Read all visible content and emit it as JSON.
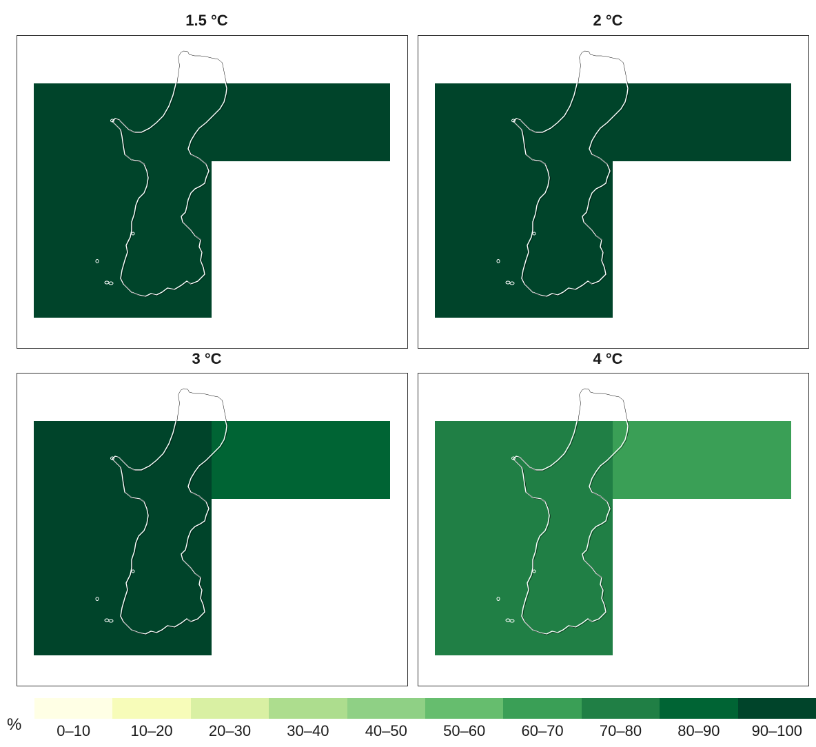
{
  "panels": [
    {
      "title": "1.5 °C",
      "class_west": "90–100",
      "class_east": "90–100"
    },
    {
      "title": "2 °C",
      "class_west": "90–100",
      "class_east": "90–100"
    },
    {
      "title": "3 °C",
      "class_west": "90–100",
      "class_east": "80–90"
    },
    {
      "title": "4 °C",
      "class_west": "70–80",
      "class_east": "60–70"
    }
  ],
  "legend": {
    "unit": "%",
    "classes": [
      {
        "label": "0–10",
        "color": "#ffffe5"
      },
      {
        "label": "10–20",
        "color": "#f7fcb9"
      },
      {
        "label": "20–30",
        "color": "#d9f0a3"
      },
      {
        "label": "30–40",
        "color": "#addd8e"
      },
      {
        "label": "40–50",
        "color": "#8fd085"
      },
      {
        "label": "50–60",
        "color": "#66bd6e"
      },
      {
        "label": "60–70",
        "color": "#3a9f56"
      },
      {
        "label": "70–80",
        "color": "#207f45"
      },
      {
        "label": "80–90",
        "color": "#006434"
      },
      {
        "label": "90–100",
        "color": "#00442a"
      }
    ]
  },
  "colors": {
    "coastline": "#ffffff",
    "frame": "#333333"
  }
}
